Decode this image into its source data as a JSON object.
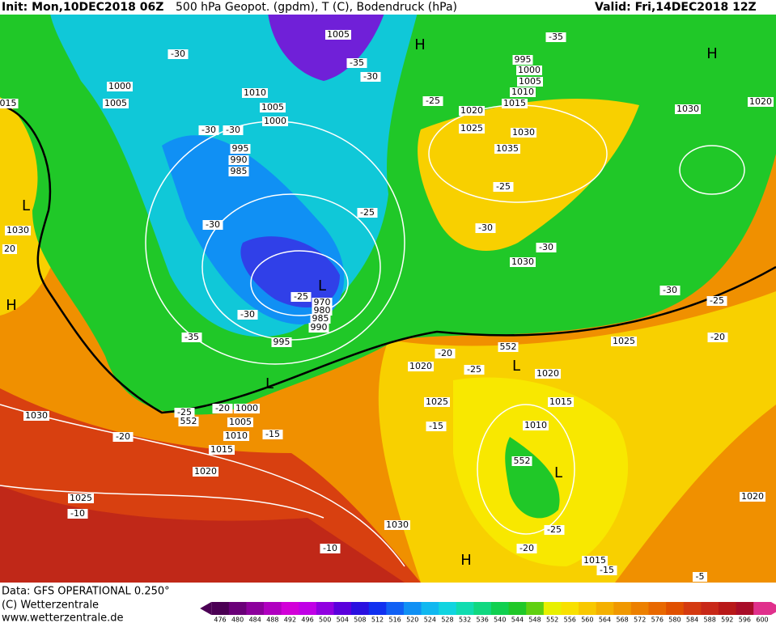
{
  "header": {
    "init": "Init: Mon,10DEC2018 06Z",
    "title": "500 hPa Geopot. (gpdm), T (C), Bodendruck (hPa)",
    "valid": "Valid: Fri,14DEC2018 12Z"
  },
  "footer": {
    "data": "Data: GFS OPERATIONAL 0.250°",
    "copyright": "(C) Wetterzentrale",
    "url": "www.wetterzentrale.de"
  },
  "scale": {
    "labels": [
      476,
      480,
      484,
      488,
      492,
      496,
      500,
      504,
      508,
      512,
      516,
      520,
      524,
      528,
      532,
      536,
      540,
      544,
      548,
      552,
      556,
      560,
      564,
      568,
      572,
      576,
      580,
      584,
      588,
      592,
      596,
      600
    ],
    "colors": [
      "#4b0054",
      "#6a0078",
      "#8c009c",
      "#b000c0",
      "#d200d8",
      "#c000e6",
      "#9000e0",
      "#5a00dc",
      "#2a10e0",
      "#1030f0",
      "#1060f4",
      "#1090f4",
      "#10b8f0",
      "#10d4e0",
      "#10dcb0",
      "#10d880",
      "#10d050",
      "#20c828",
      "#60d010",
      "#e8f000",
      "#f8e000",
      "#f8c800",
      "#f4b000",
      "#f09800",
      "#ec8000",
      "#e86800",
      "#e05000",
      "#d43a10",
      "#c82818",
      "#b81818",
      "#a80c28",
      "#e0308c"
    ]
  },
  "labels": [
    "1005",
    "H",
    "995",
    "1000",
    "1005",
    "1010",
    "1015",
    "1020",
    "1025",
    "1030",
    "1035",
    "1030",
    "1020",
    "H",
    "-35",
    "-30",
    "-35",
    "-30",
    "1000",
    "1005",
    "1010",
    "1005",
    "1000",
    "-25",
    "-30",
    "-30",
    "995",
    "990",
    "985",
    "-25",
    "-25",
    "-30",
    "-30",
    "-30",
    "1030",
    "1030",
    "L",
    "20",
    "H",
    "L",
    "-25",
    "995",
    "970",
    "980",
    "985",
    "990",
    "-30",
    "-35",
    "-30",
    "-25",
    "-20",
    "1025",
    "552",
    "-20",
    "1020",
    "-25",
    "L",
    "1020",
    "1025",
    "1015",
    "L",
    "-20",
    "1000",
    "-25",
    "552",
    "1030",
    "1005",
    "1010",
    "-15",
    "1015",
    "-20",
    "-15",
    "1010",
    "552",
    "L",
    "1020",
    "1020",
    "1025",
    "-10",
    "1030",
    "-25",
    "-20",
    "-10",
    "H",
    "1015",
    "-15",
    "-5",
    "015"
  ]
}
